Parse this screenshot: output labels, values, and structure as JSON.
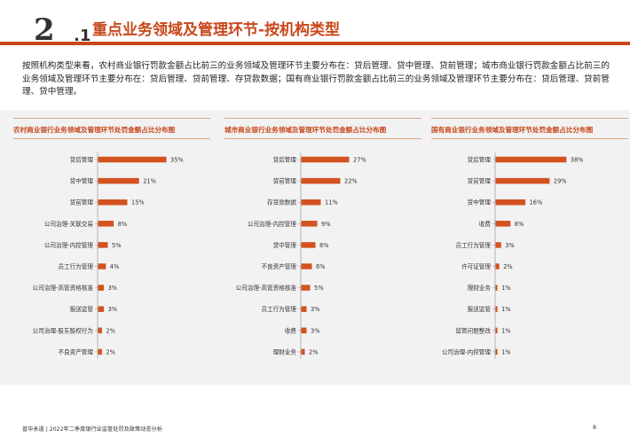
{
  "header": {
    "number": "2",
    "sub": "1",
    "title": "重点业务领域及管理环节-按机构类型"
  },
  "intro": "按照机构类型来看，农村商业银行罚款金额占比前三的业务领域及管理环节主要分布在：贷后管理、贷中管理、贷前管理；城市商业银行罚款金额占比前三的业务领域及管理环节主要分布在：贷后管理、贷前管理、存贷款数据；国有商业银行罚款金额占比前三的业务领域及管理环节主要分布在：贷后管理、贷前管理、贷中管理。",
  "footer": {
    "left": "普华永道 | 2022年二季度银行业监管处罚及政策动态分析",
    "page": "8"
  },
  "colors": {
    "accent": "#c8471b",
    "bar": "#d4521f"
  },
  "chart_data": [
    {
      "type": "bar",
      "orientation": "horizontal",
      "title": "农村商业银行业务领域及管理环节处罚金额占比分布图",
      "categories": [
        "贷后管理",
        "贷中管理",
        "贷前管理",
        "公司治理-关联交易",
        "公司治理-内控管理",
        "员工行为管理",
        "公司治理-高管资格核准",
        "报送监管",
        "公司治理-股东股权行为",
        "不良资产管理"
      ],
      "values": [
        35,
        21,
        15,
        8,
        5,
        4,
        3,
        3,
        2,
        2
      ],
      "labels": [
        "35%",
        "21%",
        "15%",
        "8%",
        "5%",
        "4%",
        "3%",
        "3%",
        "2%",
        "2%"
      ],
      "unit": "%",
      "xlim": [
        0,
        40
      ]
    },
    {
      "type": "bar",
      "orientation": "horizontal",
      "title": "城市商业银行业务领域及管理环节处罚金额占比分布图",
      "categories": [
        "贷后管理",
        "贷前管理",
        "存贷款数据",
        "公司治理-内控管理",
        "贷中管理",
        "不良资产管理",
        "公司治理-高管资格核准",
        "员工行为管理",
        "收费",
        "理财业务"
      ],
      "values": [
        27,
        22,
        11,
        9,
        8,
        6,
        5,
        3,
        3,
        2
      ],
      "labels": [
        "27%",
        "22%",
        "11%",
        "9%",
        "8%",
        "6%",
        "5%",
        "3%",
        "3%",
        "2%"
      ],
      "unit": "%",
      "xlim": [
        0,
        40
      ]
    },
    {
      "type": "bar",
      "orientation": "horizontal",
      "title": "国有商业银行业务领域及管理环节处罚金额占比分布图",
      "categories": [
        "贷后管理",
        "贷前管理",
        "贷中管理",
        "收费",
        "员工行为管理",
        "许可证管理",
        "理财业务",
        "报送监管",
        "监管问题整改",
        "公司治理-内控管理"
      ],
      "values": [
        38,
        29,
        16,
        8,
        3,
        2,
        1,
        1,
        1,
        1
      ],
      "labels": [
        "38%",
        "29%",
        "16%",
        "8%",
        "3%",
        "2%",
        "1%",
        "1%",
        "1%",
        "1%"
      ],
      "unit": "%",
      "xlim": [
        0,
        40
      ]
    }
  ]
}
